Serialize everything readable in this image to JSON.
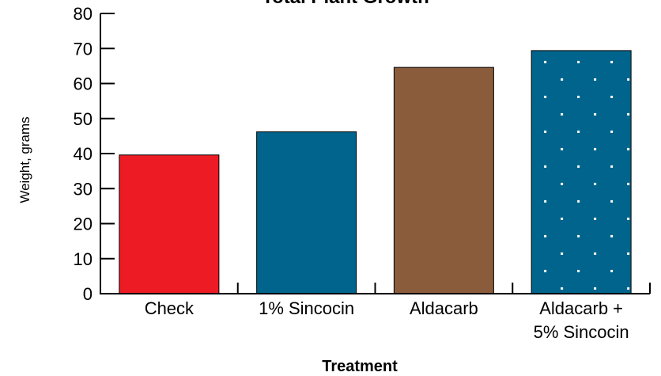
{
  "chart_data": {
    "type": "bar",
    "title": "Total Plant Growth",
    "xlabel": "Treatment",
    "ylabel": "Weight, grams",
    "ylim": [
      0,
      80
    ],
    "yticks": [
      0,
      10,
      20,
      30,
      40,
      50,
      60,
      70,
      80
    ],
    "grid": false,
    "categories": [
      {
        "lines": [
          "Check"
        ]
      },
      {
        "lines": [
          "1% Sincocin"
        ]
      },
      {
        "lines": [
          "Aldacarb"
        ]
      },
      {
        "lines": [
          "Aldacarb +",
          "5% Sincocin"
        ]
      }
    ],
    "values": [
      39.6,
      46.2,
      64.6,
      69.4
    ],
    "colors": [
      "#ed1c24",
      "#00648c",
      "#8b5c3b",
      "#00648c"
    ],
    "patterns": [
      "solid",
      "solid",
      "solid",
      "dotted"
    ]
  }
}
